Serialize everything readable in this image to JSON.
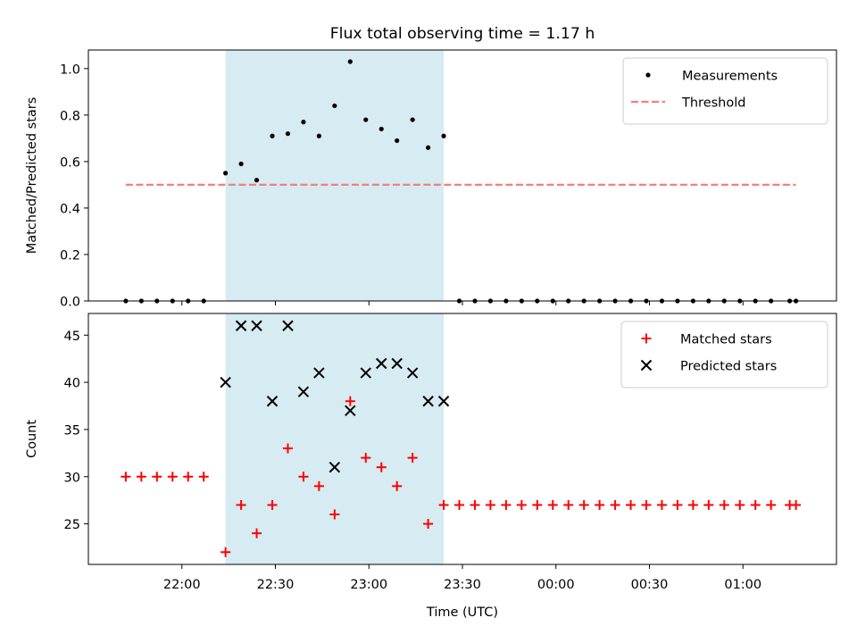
{
  "chart_data": {
    "title": "Flux total observing time = 1.17 h",
    "xlabel": "Time (UTC)",
    "xlim": [
      "21:30",
      "01:30"
    ],
    "xticks": [
      "22:00",
      "22:30",
      "23:00",
      "23:30",
      "00:00",
      "00:30",
      "01:00"
    ],
    "observing_window": {
      "start": "22:14",
      "end": "23:24",
      "color": "#add8e6"
    },
    "panels": [
      {
        "type": "scatter",
        "ylabel": "Matched/Predicted stars",
        "ylim": [
          0,
          1.08
        ],
        "yticks": [
          "0.0",
          "0.2",
          "0.4",
          "0.6",
          "0.8",
          "1.0"
        ],
        "legend_position": "top-right",
        "threshold": {
          "name": "Threshold",
          "value": 0.5,
          "x_range": [
            "21:42",
            "01:17"
          ],
          "color": "#f08080"
        },
        "series": [
          {
            "name": "Measurements",
            "marker": "dot",
            "color": "#000000",
            "points": [
              [
                "21:42",
                0.0
              ],
              [
                "21:47",
                0.0
              ],
              [
                "21:52",
                0.0
              ],
              [
                "21:57",
                0.0
              ],
              [
                "22:02",
                0.0
              ],
              [
                "22:07",
                0.0
              ],
              [
                "22:14",
                0.55
              ],
              [
                "22:19",
                0.59
              ],
              [
                "22:24",
                0.52
              ],
              [
                "22:29",
                0.71
              ],
              [
                "22:34",
                0.72
              ],
              [
                "22:39",
                0.77
              ],
              [
                "22:44",
                0.71
              ],
              [
                "22:49",
                0.84
              ],
              [
                "22:54",
                1.03
              ],
              [
                "22:59",
                0.78
              ],
              [
                "23:04",
                0.74
              ],
              [
                "23:09",
                0.69
              ],
              [
                "23:14",
                0.78
              ],
              [
                "23:19",
                0.66
              ],
              [
                "23:24",
                0.71
              ],
              [
                "23:29",
                0.0
              ],
              [
                "23:34",
                0.0
              ],
              [
                "23:39",
                0.0
              ],
              [
                "23:44",
                0.0
              ],
              [
                "23:49",
                0.0
              ],
              [
                "23:54",
                0.0
              ],
              [
                "23:59",
                0.0
              ],
              [
                "00:04",
                0.0
              ],
              [
                "00:09",
                0.0
              ],
              [
                "00:14",
                0.0
              ],
              [
                "00:19",
                0.0
              ],
              [
                "00:24",
                0.0
              ],
              [
                "00:29",
                0.0
              ],
              [
                "00:34",
                0.0
              ],
              [
                "00:39",
                0.0
              ],
              [
                "00:44",
                0.0
              ],
              [
                "00:49",
                0.0
              ],
              [
                "00:54",
                0.0
              ],
              [
                "00:59",
                0.0
              ],
              [
                "01:04",
                0.0
              ],
              [
                "01:09",
                0.0
              ],
              [
                "01:15",
                0.0
              ],
              [
                "01:17",
                0.0
              ]
            ]
          }
        ]
      },
      {
        "type": "scatter",
        "ylabel": "Count",
        "ylim": [
          20.7,
          47.3
        ],
        "yticks": [
          "25",
          "30",
          "35",
          "40",
          "45"
        ],
        "legend_position": "top-right",
        "series": [
          {
            "name": "Matched stars",
            "marker": "plus",
            "color": "#ff0000",
            "points": [
              [
                "21:42",
                30
              ],
              [
                "21:47",
                30
              ],
              [
                "21:52",
                30
              ],
              [
                "21:57",
                30
              ],
              [
                "22:02",
                30
              ],
              [
                "22:07",
                30
              ],
              [
                "22:14",
                22
              ],
              [
                "22:19",
                27
              ],
              [
                "22:24",
                24
              ],
              [
                "22:29",
                27
              ],
              [
                "22:34",
                33
              ],
              [
                "22:39",
                30
              ],
              [
                "22:44",
                29
              ],
              [
                "22:49",
                26
              ],
              [
                "22:54",
                38
              ],
              [
                "22:59",
                32
              ],
              [
                "23:04",
                31
              ],
              [
                "23:09",
                29
              ],
              [
                "23:14",
                32
              ],
              [
                "23:19",
                25
              ],
              [
                "23:24",
                27
              ],
              [
                "23:29",
                27
              ],
              [
                "23:34",
                27
              ],
              [
                "23:39",
                27
              ],
              [
                "23:44",
                27
              ],
              [
                "23:49",
                27
              ],
              [
                "23:54",
                27
              ],
              [
                "23:59",
                27
              ],
              [
                "00:04",
                27
              ],
              [
                "00:09",
                27
              ],
              [
                "00:14",
                27
              ],
              [
                "00:19",
                27
              ],
              [
                "00:24",
                27
              ],
              [
                "00:29",
                27
              ],
              [
                "00:34",
                27
              ],
              [
                "00:39",
                27
              ],
              [
                "00:44",
                27
              ],
              [
                "00:49",
                27
              ],
              [
                "00:54",
                27
              ],
              [
                "00:59",
                27
              ],
              [
                "01:04",
                27
              ],
              [
                "01:09",
                27
              ],
              [
                "01:15",
                27
              ],
              [
                "01:17",
                27
              ]
            ]
          },
          {
            "name": "Predicted stars",
            "marker": "x",
            "color": "#000000",
            "points": [
              [
                "22:14",
                40
              ],
              [
                "22:19",
                46
              ],
              [
                "22:24",
                46
              ],
              [
                "22:29",
                38
              ],
              [
                "22:34",
                46
              ],
              [
                "22:39",
                39
              ],
              [
                "22:44",
                41
              ],
              [
                "22:49",
                31
              ],
              [
                "22:54",
                37
              ],
              [
                "22:59",
                41
              ],
              [
                "23:04",
                42
              ],
              [
                "23:09",
                42
              ],
              [
                "23:14",
                41
              ],
              [
                "23:19",
                38
              ],
              [
                "23:24",
                38
              ]
            ]
          }
        ]
      }
    ]
  }
}
